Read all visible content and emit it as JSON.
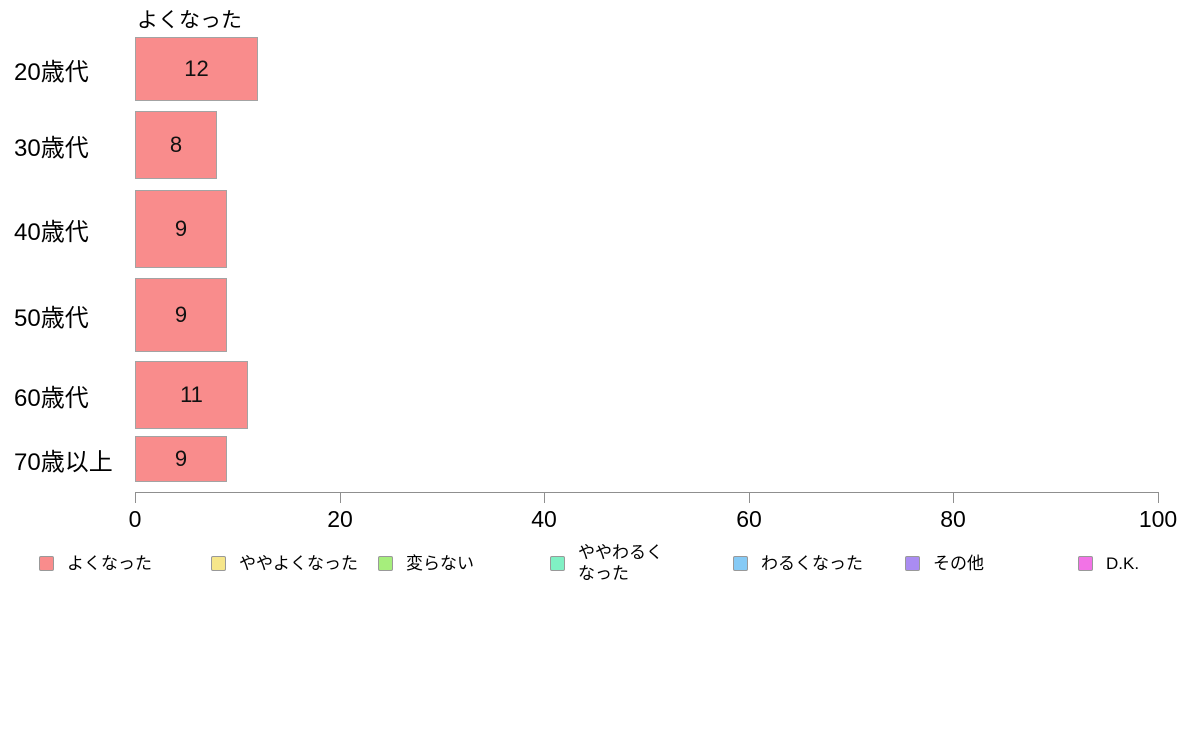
{
  "chart_data": {
    "type": "bar",
    "orientation": "horizontal",
    "title": "よくなった",
    "categories": [
      "20歳代",
      "30歳代",
      "40歳代",
      "50歳代",
      "60歳代",
      "70歳以上"
    ],
    "values": [
      12,
      8,
      9,
      9,
      11,
      9
    ],
    "xlabel": "",
    "ylabel": "",
    "xlim": [
      0,
      100
    ],
    "x_ticks": [
      0,
      20,
      40,
      60,
      80,
      100
    ],
    "grid": false,
    "bar_color": "#F98C8C",
    "bar_border_color": "#a3a3a3",
    "axis_color": "#8f8f8f",
    "legend_position": "bottom",
    "legend": [
      {
        "label": "よくなった",
        "color": "#F98C8C"
      },
      {
        "label": "ややよくなった",
        "color": "#F6E68A"
      },
      {
        "label": "変らない",
        "color": "#A6EE7C"
      },
      {
        "label": "ややわるくなった",
        "color": "#80F0C4"
      },
      {
        "label": "わるくなった",
        "color": "#86CAF5"
      },
      {
        "label": "その他",
        "color": "#AA8CF2"
      },
      {
        "label": "D.K.",
        "color": "#F273E6"
      }
    ]
  }
}
